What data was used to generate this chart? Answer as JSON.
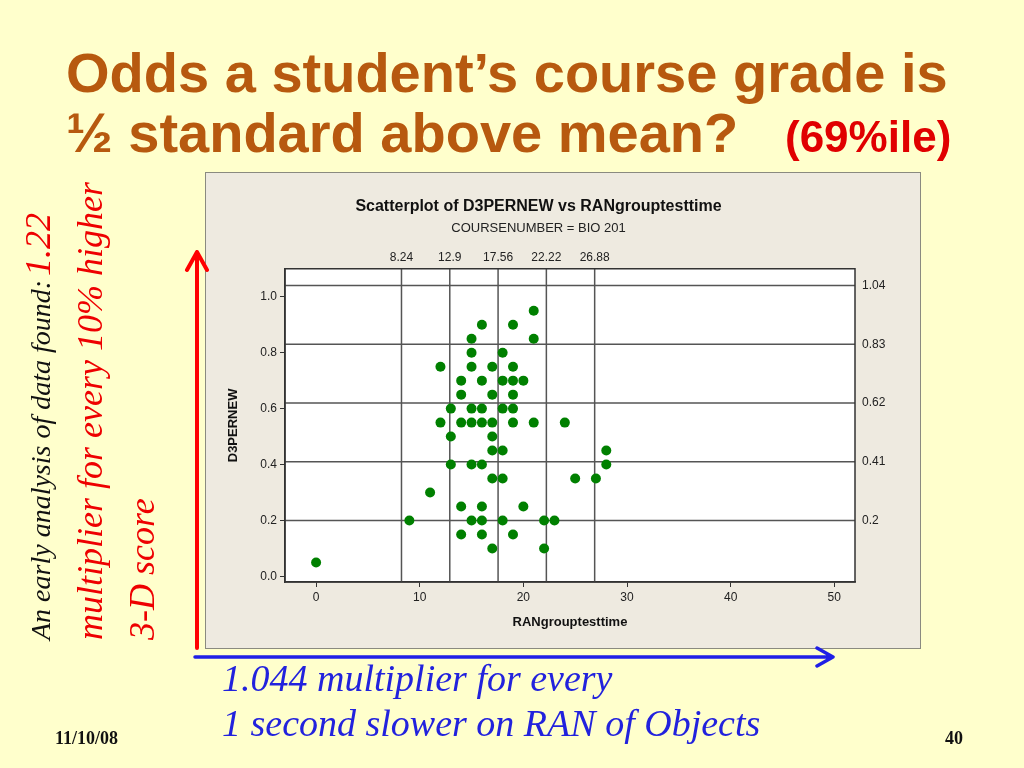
{
  "chart_data": {
    "type": "scatter",
    "title": "Scatterplot of D3PERNEW vs RANgrouptesttime",
    "subtitle": "COURSENUMBER = BIO 201",
    "xlabel": "RANgrouptesttime",
    "ylabel": "D3PERNEW",
    "x": [
      21,
      16,
      19,
      15,
      21,
      15,
      18,
      12,
      15,
      17,
      19,
      14,
      16,
      18,
      19,
      20,
      14,
      17,
      19,
      13,
      15,
      16,
      18,
      19,
      12,
      14,
      15,
      16,
      17,
      19,
      21,
      24,
      13,
      17,
      17,
      18,
      28,
      13,
      15,
      16,
      28,
      17,
      18,
      25,
      27,
      11,
      14,
      16,
      20,
      9,
      15,
      16,
      18,
      22,
      23,
      14,
      16,
      19,
      17,
      22,
      0
    ],
    "values": [
      0.95,
      0.9,
      0.9,
      0.85,
      0.85,
      0.8,
      0.8,
      0.75,
      0.75,
      0.75,
      0.75,
      0.7,
      0.7,
      0.7,
      0.7,
      0.7,
      0.65,
      0.65,
      0.65,
      0.6,
      0.6,
      0.6,
      0.6,
      0.6,
      0.55,
      0.55,
      0.55,
      0.55,
      0.55,
      0.55,
      0.55,
      0.55,
      0.5,
      0.5,
      0.45,
      0.45,
      0.45,
      0.4,
      0.4,
      0.4,
      0.4,
      0.35,
      0.35,
      0.35,
      0.35,
      0.3,
      0.25,
      0.25,
      0.25,
      0.2,
      0.2,
      0.2,
      0.2,
      0.2,
      0.2,
      0.15,
      0.15,
      0.15,
      0.1,
      0.1,
      0.05
    ],
    "color": "#008000",
    "marker": "circle",
    "xlim": [
      -3,
      52
    ],
    "ylim": [
      -0.02,
      1.1
    ],
    "xticks": [
      0,
      10,
      20,
      30,
      40,
      50
    ],
    "yticks": [
      {
        "value": 0,
        "label": "0.0"
      },
      0.2,
      0.4,
      0.6,
      0.8,
      {
        "value": 1,
        "label": "1.0"
      }
    ],
    "ref_lines": [
      {
        "axis": "x",
        "value": 8.24,
        "label": "8.24",
        "color": "#555555"
      },
      {
        "axis": "x",
        "value": 12.9,
        "label": "12.9",
        "color": "#555555"
      },
      {
        "axis": "x",
        "value": 17.56,
        "label": "17.56",
        "color": "#555555"
      },
      {
        "axis": "x",
        "value": 22.22,
        "label": "22.22",
        "color": "#555555"
      },
      {
        "axis": "x",
        "value": 26.88,
        "label": "26.88",
        "color": "#555555"
      },
      {
        "axis": "y",
        "value": 0.2,
        "label": "0.2",
        "color": "#555555"
      },
      {
        "axis": "y",
        "value": 0.41,
        "label": "0.41",
        "color": "#555555"
      },
      {
        "axis": "y",
        "value": 0.62,
        "label": "0.62",
        "color": "#555555"
      },
      {
        "axis": "y",
        "value": 0.83,
        "label": "0.83",
        "color": "#555555"
      },
      {
        "axis": "y",
        "value": 1.04,
        "label": "1.04",
        "color": "#555555"
      }
    ],
    "annotations": [
      "Odds a student’s course grade is",
      "½ standard above mean?",
      "(69%ile)",
      "An early analysis of data found:",
      "1.22",
      "multiplier for every 10% higher",
      "3-D score",
      "1.044 multiplier for every",
      "1 second slower on RAN of Objects",
      "11/10/08",
      "40"
    ]
  }
}
